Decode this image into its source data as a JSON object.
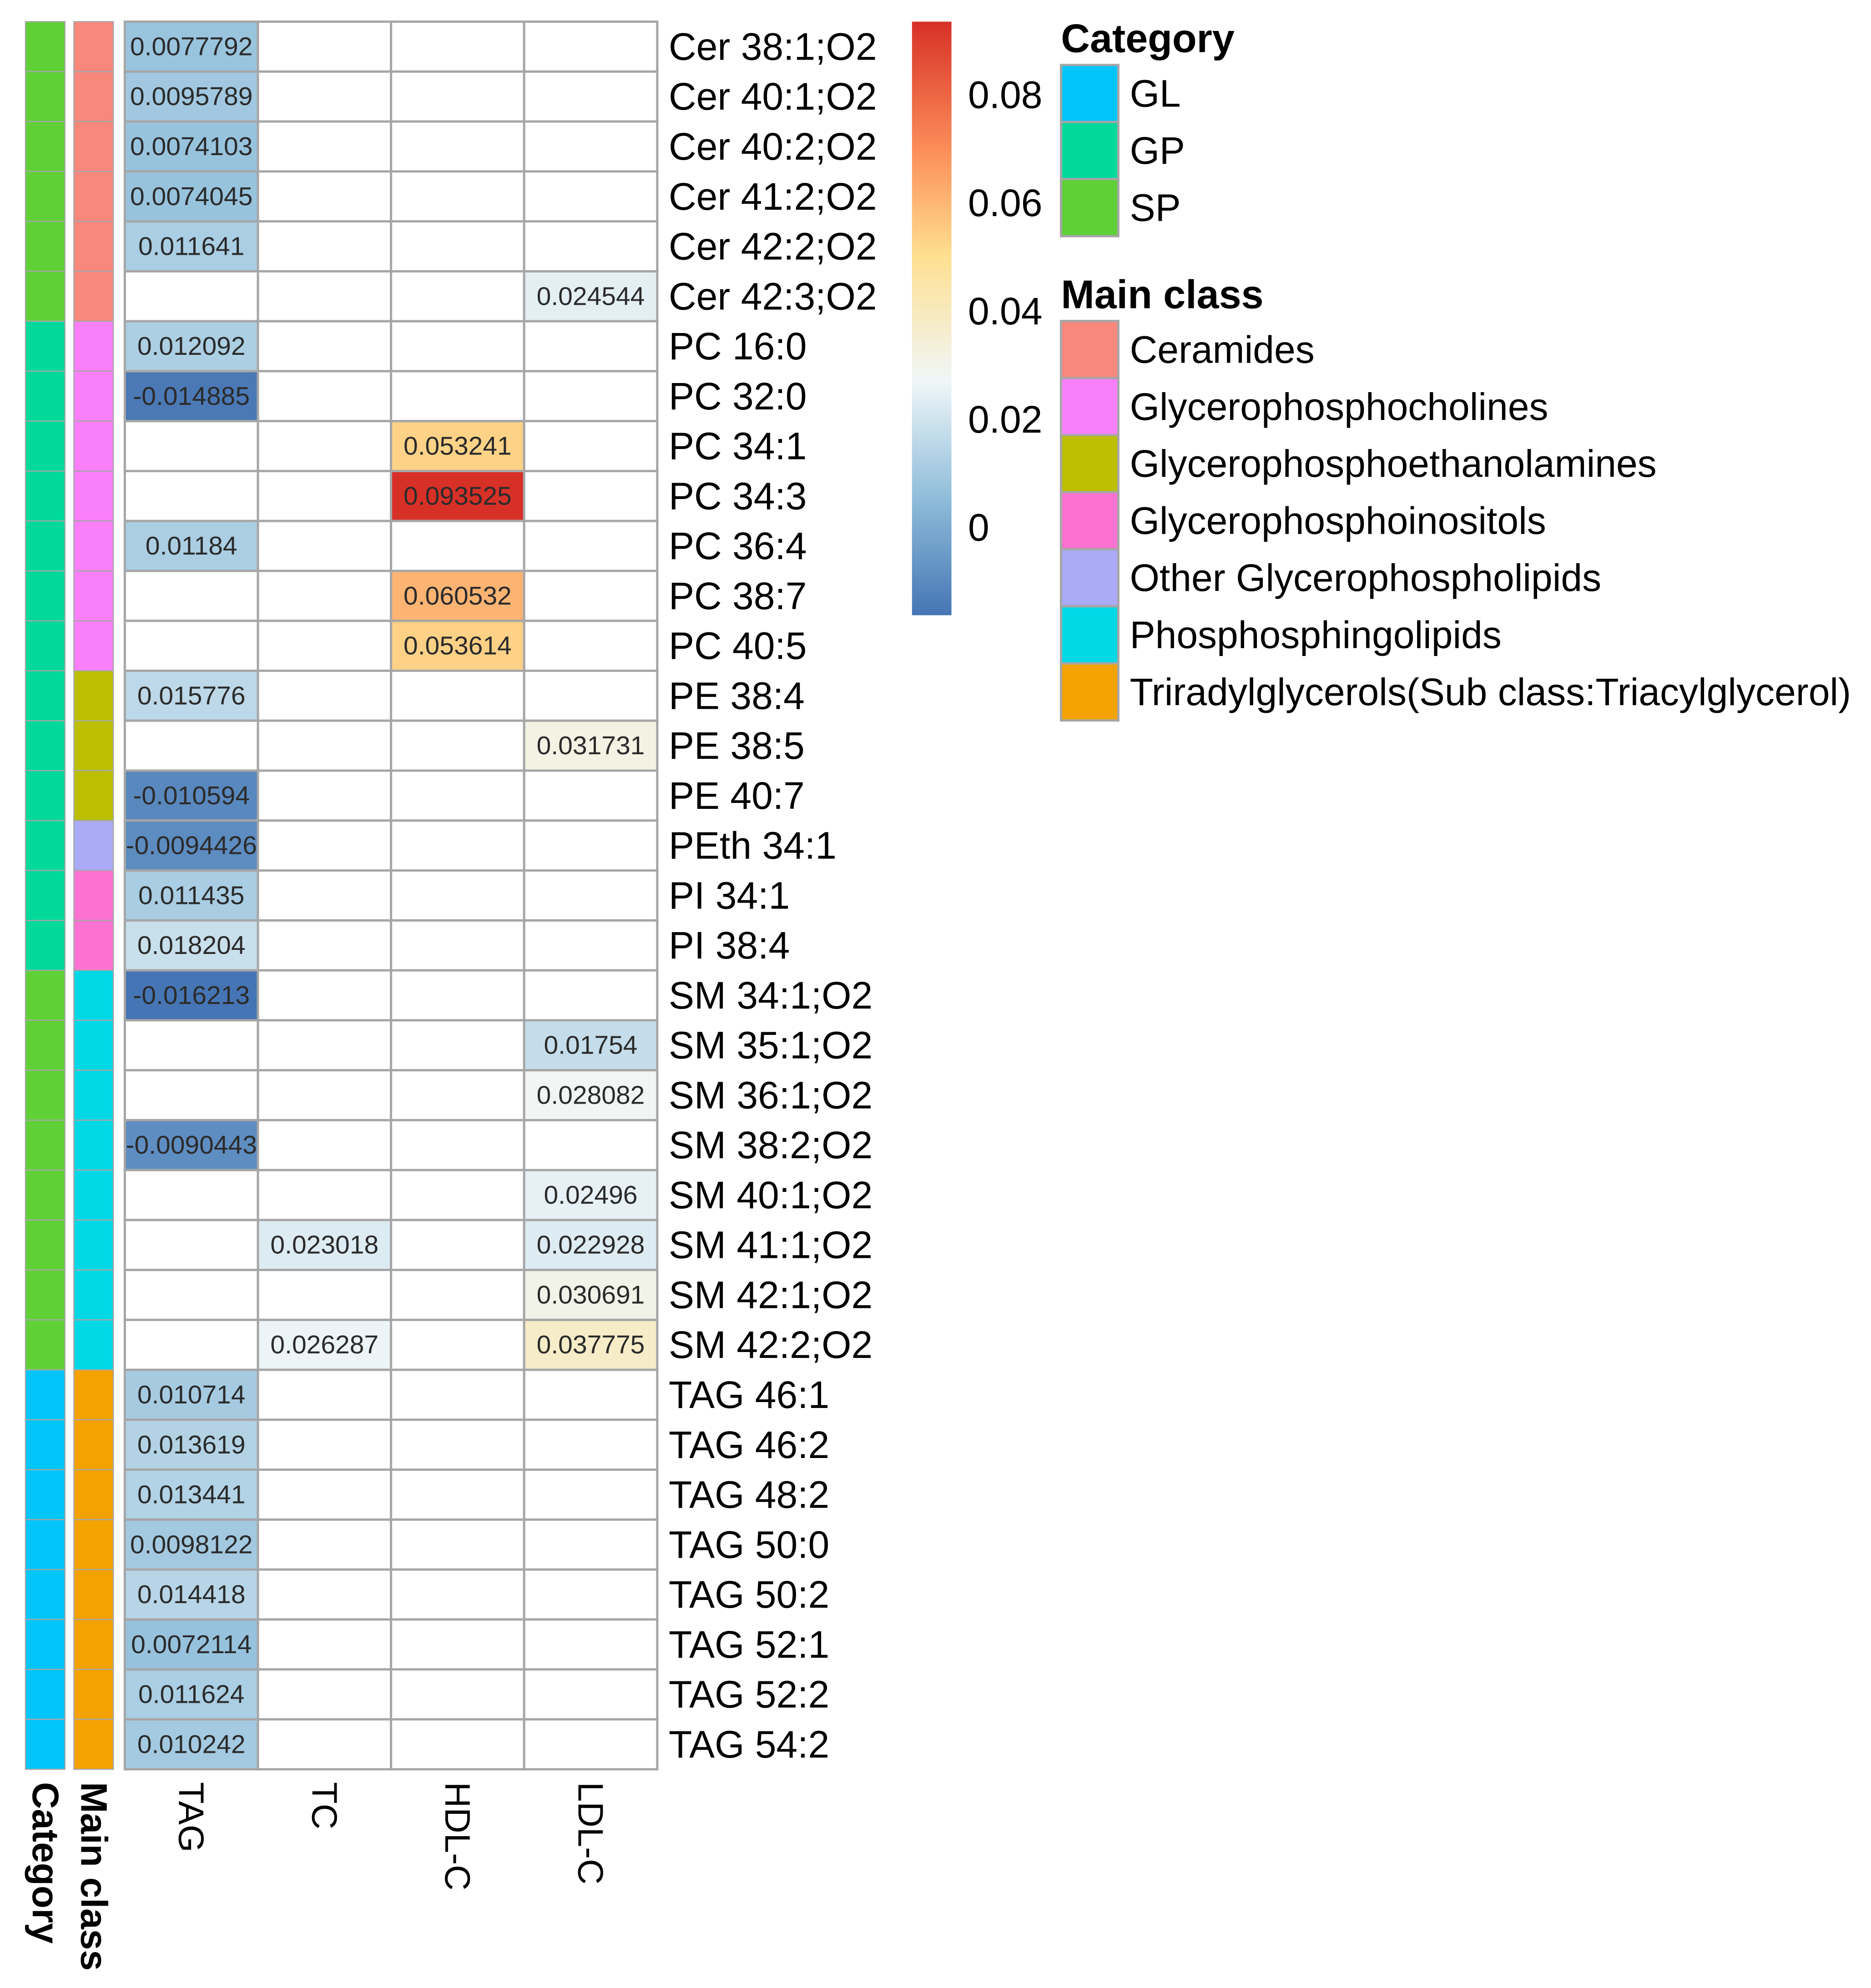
{
  "chart_data": {
    "type": "heatmap",
    "columns": [
      "TAG",
      "TC",
      "HDL-C",
      "LDL-C"
    ],
    "annotation_columns": [
      "Category",
      "Main class"
    ],
    "rows": [
      {
        "label": "Cer 38:1;O2",
        "category": "SP",
        "main_class": "Ceramides",
        "values": [
          0.0077792,
          null,
          null,
          null
        ],
        "texts": [
          "0.0077792",
          "",
          "",
          ""
        ]
      },
      {
        "label": "Cer 40:1;O2",
        "category": "SP",
        "main_class": "Ceramides",
        "values": [
          0.0095789,
          null,
          null,
          null
        ],
        "texts": [
          "0.0095789",
          "",
          "",
          ""
        ]
      },
      {
        "label": "Cer 40:2;O2",
        "category": "SP",
        "main_class": "Ceramides",
        "values": [
          0.0074103,
          null,
          null,
          null
        ],
        "texts": [
          "0.0074103",
          "",
          "",
          ""
        ]
      },
      {
        "label": "Cer 41:2;O2",
        "category": "SP",
        "main_class": "Ceramides",
        "values": [
          0.0074045,
          null,
          null,
          null
        ],
        "texts": [
          "0.0074045",
          "",
          "",
          ""
        ]
      },
      {
        "label": "Cer 42:2;O2",
        "category": "SP",
        "main_class": "Ceramides",
        "values": [
          0.011641,
          null,
          null,
          null
        ],
        "texts": [
          "0.011641",
          "",
          "",
          ""
        ]
      },
      {
        "label": "Cer 42:3;O2",
        "category": "SP",
        "main_class": "Ceramides",
        "values": [
          null,
          null,
          null,
          0.024544
        ],
        "texts": [
          "",
          "",
          "",
          "0.024544"
        ]
      },
      {
        "label": "PC 16:0",
        "category": "GP",
        "main_class": "Glycerophosphocholines",
        "values": [
          0.012092,
          null,
          null,
          null
        ],
        "texts": [
          "0.012092",
          "",
          "",
          ""
        ]
      },
      {
        "label": "PC 32:0",
        "category": "GP",
        "main_class": "Glycerophosphocholines",
        "values": [
          -0.014885,
          null,
          null,
          null
        ],
        "texts": [
          "-0.014885",
          "",
          "",
          ""
        ]
      },
      {
        "label": "PC 34:1",
        "category": "GP",
        "main_class": "Glycerophosphocholines",
        "values": [
          null,
          null,
          0.053241,
          null
        ],
        "texts": [
          "",
          "",
          "0.053241",
          ""
        ]
      },
      {
        "label": "PC 34:3",
        "category": "GP",
        "main_class": "Glycerophosphocholines",
        "values": [
          null,
          null,
          0.093525,
          null
        ],
        "texts": [
          "",
          "",
          "0.093525",
          ""
        ]
      },
      {
        "label": "PC 36:4",
        "category": "GP",
        "main_class": "Glycerophosphocholines",
        "values": [
          0.01184,
          null,
          null,
          null
        ],
        "texts": [
          "0.01184",
          "",
          "",
          ""
        ]
      },
      {
        "label": "PC 38:7",
        "category": "GP",
        "main_class": "Glycerophosphocholines",
        "values": [
          null,
          null,
          0.060532,
          null
        ],
        "texts": [
          "",
          "",
          "0.060532",
          ""
        ]
      },
      {
        "label": "PC 40:5",
        "category": "GP",
        "main_class": "Glycerophosphocholines",
        "values": [
          null,
          null,
          0.053614,
          null
        ],
        "texts": [
          "",
          "",
          "0.053614",
          ""
        ]
      },
      {
        "label": "PE 38:4",
        "category": "GP",
        "main_class": "Glycerophosphoethanolamines",
        "values": [
          0.015776,
          null,
          null,
          null
        ],
        "texts": [
          "0.015776",
          "",
          "",
          ""
        ]
      },
      {
        "label": "PE 38:5",
        "category": "GP",
        "main_class": "Glycerophosphoethanolamines",
        "values": [
          null,
          null,
          null,
          0.031731
        ],
        "texts": [
          "",
          "",
          "",
          "0.031731"
        ]
      },
      {
        "label": "PE 40:7",
        "category": "GP",
        "main_class": "Glycerophosphoethanolamines",
        "values": [
          -0.010594,
          null,
          null,
          null
        ],
        "texts": [
          "-0.010594",
          "",
          "",
          ""
        ]
      },
      {
        "label": "PEth 34:1",
        "category": "GP",
        "main_class": "Other Glycerophospholipids",
        "values": [
          -0.0094426,
          null,
          null,
          null
        ],
        "texts": [
          "-0.0094426",
          "",
          "",
          ""
        ]
      },
      {
        "label": "PI 34:1",
        "category": "GP",
        "main_class": "Glycerophosphoinositols",
        "values": [
          0.011435,
          null,
          null,
          null
        ],
        "texts": [
          "0.011435",
          "",
          "",
          ""
        ]
      },
      {
        "label": "PI 38:4",
        "category": "GP",
        "main_class": "Glycerophosphoinositols",
        "values": [
          0.018204,
          null,
          null,
          null
        ],
        "texts": [
          "0.018204",
          "",
          "",
          ""
        ]
      },
      {
        "label": "SM 34:1;O2",
        "category": "SP",
        "main_class": "Phosphosphingolipids",
        "values": [
          -0.016213,
          null,
          null,
          null
        ],
        "texts": [
          "-0.016213",
          "",
          "",
          ""
        ]
      },
      {
        "label": "SM 35:1;O2",
        "category": "SP",
        "main_class": "Phosphosphingolipids",
        "values": [
          null,
          null,
          null,
          0.01754
        ],
        "texts": [
          "",
          "",
          "",
          "0.01754"
        ]
      },
      {
        "label": "SM 36:1;O2",
        "category": "SP",
        "main_class": "Phosphosphingolipids",
        "values": [
          null,
          null,
          null,
          0.028082
        ],
        "texts": [
          "",
          "",
          "",
          "0.028082"
        ]
      },
      {
        "label": "SM 38:2;O2",
        "category": "SP",
        "main_class": "Phosphosphingolipids",
        "values": [
          -0.0090443,
          null,
          null,
          null
        ],
        "texts": [
          "-0.0090443",
          "",
          "",
          ""
        ]
      },
      {
        "label": "SM 40:1;O2",
        "category": "SP",
        "main_class": "Phosphosphingolipids",
        "values": [
          null,
          null,
          null,
          0.02496
        ],
        "texts": [
          "",
          "",
          "",
          "0.02496"
        ]
      },
      {
        "label": "SM 41:1;O2",
        "category": "SP",
        "main_class": "Phosphosphingolipids",
        "values": [
          null,
          0.023018,
          null,
          0.022928
        ],
        "texts": [
          "",
          "0.023018",
          "",
          "0.022928"
        ]
      },
      {
        "label": "SM 42:1;O2",
        "category": "SP",
        "main_class": "Phosphosphingolipids",
        "values": [
          null,
          null,
          null,
          0.030691
        ],
        "texts": [
          "",
          "",
          "",
          "0.030691"
        ]
      },
      {
        "label": "SM 42:2;O2",
        "category": "SP",
        "main_class": "Phosphosphingolipids",
        "values": [
          null,
          0.026287,
          null,
          0.037775
        ],
        "texts": [
          "",
          "0.026287",
          "",
          "0.037775"
        ]
      },
      {
        "label": "TAG 46:1",
        "category": "GL",
        "main_class": "Triradylglycerols(Sub class:Triacylglycerol)",
        "values": [
          0.010714,
          null,
          null,
          null
        ],
        "texts": [
          "0.010714",
          "",
          "",
          ""
        ]
      },
      {
        "label": "TAG 46:2",
        "category": "GL",
        "main_class": "Triradylglycerols(Sub class:Triacylglycerol)",
        "values": [
          0.013619,
          null,
          null,
          null
        ],
        "texts": [
          "0.013619",
          "",
          "",
          ""
        ]
      },
      {
        "label": "TAG 48:2",
        "category": "GL",
        "main_class": "Triradylglycerols(Sub class:Triacylglycerol)",
        "values": [
          0.013441,
          null,
          null,
          null
        ],
        "texts": [
          "0.013441",
          "",
          "",
          ""
        ]
      },
      {
        "label": "TAG 50:0",
        "category": "GL",
        "main_class": "Triradylglycerols(Sub class:Triacylglycerol)",
        "values": [
          0.0098122,
          null,
          null,
          null
        ],
        "texts": [
          "0.0098122",
          "",
          "",
          ""
        ]
      },
      {
        "label": "TAG 50:2",
        "category": "GL",
        "main_class": "Triradylglycerols(Sub class:Triacylglycerol)",
        "values": [
          0.014418,
          null,
          null,
          null
        ],
        "texts": [
          "0.014418",
          "",
          "",
          ""
        ]
      },
      {
        "label": "TAG 52:1",
        "category": "GL",
        "main_class": "Triradylglycerols(Sub class:Triacylglycerol)",
        "values": [
          0.0072114,
          null,
          null,
          null
        ],
        "texts": [
          "0.0072114",
          "",
          "",
          ""
        ]
      },
      {
        "label": "TAG 52:2",
        "category": "GL",
        "main_class": "Triradylglycerols(Sub class:Triacylglycerol)",
        "values": [
          0.011624,
          null,
          null,
          null
        ],
        "texts": [
          "0.011624",
          "",
          "",
          ""
        ]
      },
      {
        "label": "TAG 54:2",
        "category": "GL",
        "main_class": "Triradylglycerols(Sub class:Triacylglycerol)",
        "values": [
          0.010242,
          null,
          null,
          null
        ],
        "texts": [
          "0.010242",
          "",
          "",
          ""
        ]
      }
    ],
    "color_scale": {
      "range": [
        -0.016213,
        0.093525
      ],
      "ticks": [
        0,
        0.02,
        0.04,
        0.06,
        0.08
      ],
      "tick_labels": [
        "0",
        "0.02",
        "0.04",
        "0.06",
        "0.08"
      ],
      "stops": [
        {
          "value": -0.016213,
          "color": "#4575b4"
        },
        {
          "value": 0.006,
          "color": "#91bfdb"
        },
        {
          "value": 0.0272,
          "color": "#f0f6f8"
        },
        {
          "value": 0.05,
          "color": "#fee090"
        },
        {
          "value": 0.07,
          "color": "#fc8d59"
        },
        {
          "value": 0.093525,
          "color": "#d73027"
        }
      ]
    },
    "legends": {
      "category": {
        "title": "Category",
        "items": [
          {
            "label": "GL",
            "color": "#00c5fa"
          },
          {
            "label": "GP",
            "color": "#00d99a"
          },
          {
            "label": "SP",
            "color": "#5fd136"
          }
        ]
      },
      "main_class": {
        "title": "Main class",
        "items": [
          {
            "label": "Ceramides",
            "color": "#f8877c"
          },
          {
            "label": "Glycerophosphocholines",
            "color": "#fa80fa"
          },
          {
            "label": "Glycerophosphoethanolamines",
            "color": "#bcbf00"
          },
          {
            "label": "Glycerophosphoinositols",
            "color": "#fb72d2"
          },
          {
            "label": "Other Glycerophospholipids",
            "color": "#aaaaf6"
          },
          {
            "label": "Phosphosphingolipids",
            "color": "#00d8e6"
          },
          {
            "label": "Triradylglycerols(Sub class:Triacylglycerol)",
            "color": "#f3a200"
          }
        ]
      }
    },
    "colors": {
      "grid": "#a6a6a6",
      "empty_cell": "#ffffff",
      "text": "#000000",
      "cell_text": "#2b2b2b"
    }
  }
}
